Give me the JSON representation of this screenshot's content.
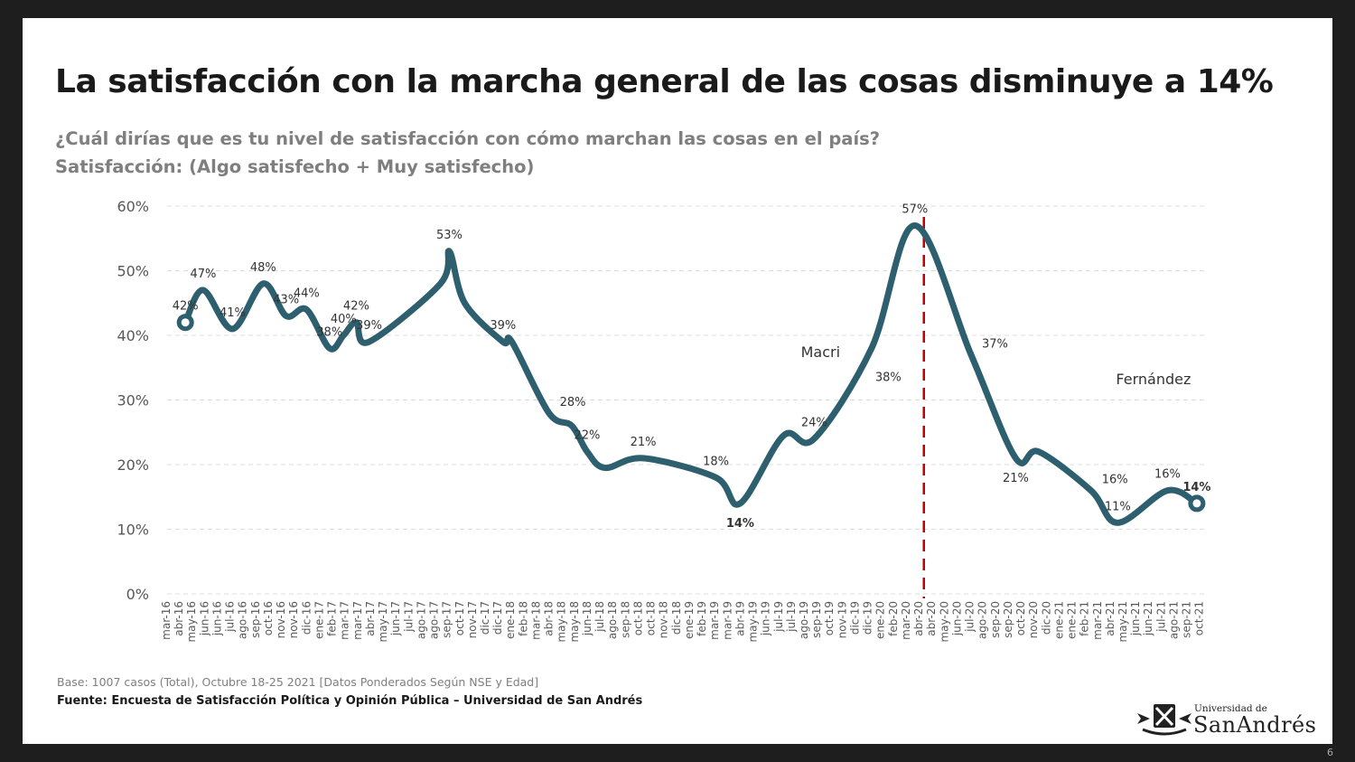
{
  "slide": {
    "title": "La satisfacción con la marcha general de las cosas disminuye a 14%",
    "subtitle_1": "¿Cuál dirías que es tu nivel de satisfacción con cómo marchan las cosas en el país?",
    "subtitle_2": "Satisfacción: (Algo satisfecho + Muy satisfecho)",
    "base_note": "Base: 1007 casos (Total), Octubre 18-25 2021 [Datos Ponderados Según NSE y Edad]",
    "source_note": "Fuente: Encuesta de Satisfacción Política y Opinión Pública – Universidad de San Andrés",
    "page_number": "6",
    "logo": {
      "line1": "Universidad de",
      "line2": "SanAndrés"
    }
  },
  "chart_data": {
    "type": "line",
    "title": "",
    "xlabel": "",
    "ylabel": "",
    "ylim": [
      0,
      60
    ],
    "yticks": [
      "0%",
      "10%",
      "20%",
      "30%",
      "40%",
      "50%",
      "60%"
    ],
    "grid": "horizontal dashed",
    "line_color": "#2d5f6f",
    "marker_line_color": "#c00000",
    "categories": [
      "mar-16",
      "abr-16",
      "may-16",
      "jun-16",
      "jun-16",
      "jul-16",
      "ago-16",
      "sep-16",
      "oct-16",
      "nov-16",
      "nov-16",
      "dic-16",
      "ene-17",
      "feb-17",
      "mar-17",
      "mar-17",
      "abr-17",
      "may-17",
      "jun-17",
      "jul-17",
      "ago-17",
      "ago-17",
      "sep-17",
      "oct-17",
      "nov-17",
      "dic-17",
      "dic-17",
      "ene-18",
      "feb-18",
      "mar-18",
      "abr-18",
      "may-18",
      "may-18",
      "jun-18",
      "jul-18",
      "ago-18",
      "sep-18",
      "oct-18",
      "oct-18",
      "nov-18",
      "dic-18",
      "ene-19",
      "feb-19",
      "mar-19",
      "mar-19",
      "abr-19",
      "may-19",
      "jun-19",
      "jul-19",
      "jul-19",
      "ago-19",
      "sep-19",
      "oct-19",
      "nov-19",
      "dic-19",
      "dic-19",
      "ene-20",
      "feb-20",
      "mar-20",
      "abr-20",
      "abr-20",
      "may-20",
      "jun-20",
      "jul-20",
      "ago-20",
      "sep-20",
      "sep-20",
      "oct-20",
      "nov-20",
      "dic-20",
      "ene-21",
      "ene-21",
      "feb-21",
      "mar-21",
      "abr-21",
      "may-21",
      "jun-21",
      "jun-21",
      "jul-21",
      "ago-21",
      "sep-21",
      "oct-21"
    ],
    "series": [
      {
        "points": [
          {
            "x": 1.5,
            "y": 42,
            "label": "42%",
            "pos": "above"
          },
          {
            "x": 2.9,
            "y": 47,
            "label": "47%",
            "pos": "above"
          },
          {
            "x": 5.2,
            "y": 41,
            "label": "41%",
            "pos": "above"
          },
          {
            "x": 7.6,
            "y": 48,
            "label": "48%",
            "pos": "above"
          },
          {
            "x": 9.4,
            "y": 43,
            "label": "43%",
            "pos": "above"
          },
          {
            "x": 11.0,
            "y": 44,
            "label": "44%",
            "pos": "above"
          },
          {
            "x": 12.8,
            "y": 38,
            "label": "38%",
            "pos": "above"
          },
          {
            "x": 13.9,
            "y": 40,
            "label": "40%",
            "pos": "above"
          },
          {
            "x": 14.9,
            "y": 42,
            "label": "42%",
            "pos": "above"
          },
          {
            "x": 15.9,
            "y": 39,
            "label": "39%",
            "pos": "above"
          },
          {
            "x": 21.5,
            "y": 48,
            "label": null
          },
          {
            "x": 22.2,
            "y": 53,
            "label": "53%",
            "pos": "above"
          },
          {
            "x": 23.4,
            "y": 45,
            "label": null
          },
          {
            "x": 26.4,
            "y": 39,
            "label": "39%",
            "pos": "above"
          },
          {
            "x": 27.1,
            "y": 39,
            "label": null
          },
          {
            "x": 30.0,
            "y": 28,
            "label": "28%",
            "pos": "above-right"
          },
          {
            "x": 31.8,
            "y": 26,
            "label": null
          },
          {
            "x": 33.0,
            "y": 22,
            "label": "22%",
            "pos": "above"
          },
          {
            "x": 34.4,
            "y": 19.5,
            "label": null
          },
          {
            "x": 37.4,
            "y": 21,
            "label": "21%",
            "pos": "above"
          },
          {
            "x": 43.1,
            "y": 18,
            "label": "18%",
            "pos": "above"
          },
          {
            "x": 45.0,
            "y": 14,
            "label": "14%",
            "pos": "below",
            "bold": true
          },
          {
            "x": 48.4,
            "y": 24.5,
            "label": null
          },
          {
            "x": 50.8,
            "y": 24,
            "label": "24%",
            "pos": "above"
          },
          {
            "x": 55.3,
            "y": 38,
            "label": "38%",
            "pos": "below-right"
          },
          {
            "x": 58.7,
            "y": 57,
            "label": "57%",
            "pos": "above"
          },
          {
            "x": 63.1,
            "y": 37,
            "label": "37%",
            "pos": "above-right"
          },
          {
            "x": 66.6,
            "y": 21,
            "label": "21%",
            "pos": "below"
          },
          {
            "x": 68.4,
            "y": 22,
            "label": null
          },
          {
            "x": 72.5,
            "y": 16,
            "label": "16%",
            "pos": "above-right"
          },
          {
            "x": 74.6,
            "y": 11,
            "label": "11%",
            "pos": "above"
          },
          {
            "x": 78.5,
            "y": 16,
            "label": "16%",
            "pos": "above"
          },
          {
            "x": 80.8,
            "y": 14,
            "label": "14%",
            "pos": "above",
            "bold": true
          }
        ]
      }
    ],
    "vertical_marker": {
      "x": 59.4
    },
    "annotations": [
      {
        "text": "Macri",
        "x": 51.3,
        "y": 37.5
      },
      {
        "text": "Fernández",
        "x": 77.4,
        "y": 33.3
      }
    ]
  }
}
